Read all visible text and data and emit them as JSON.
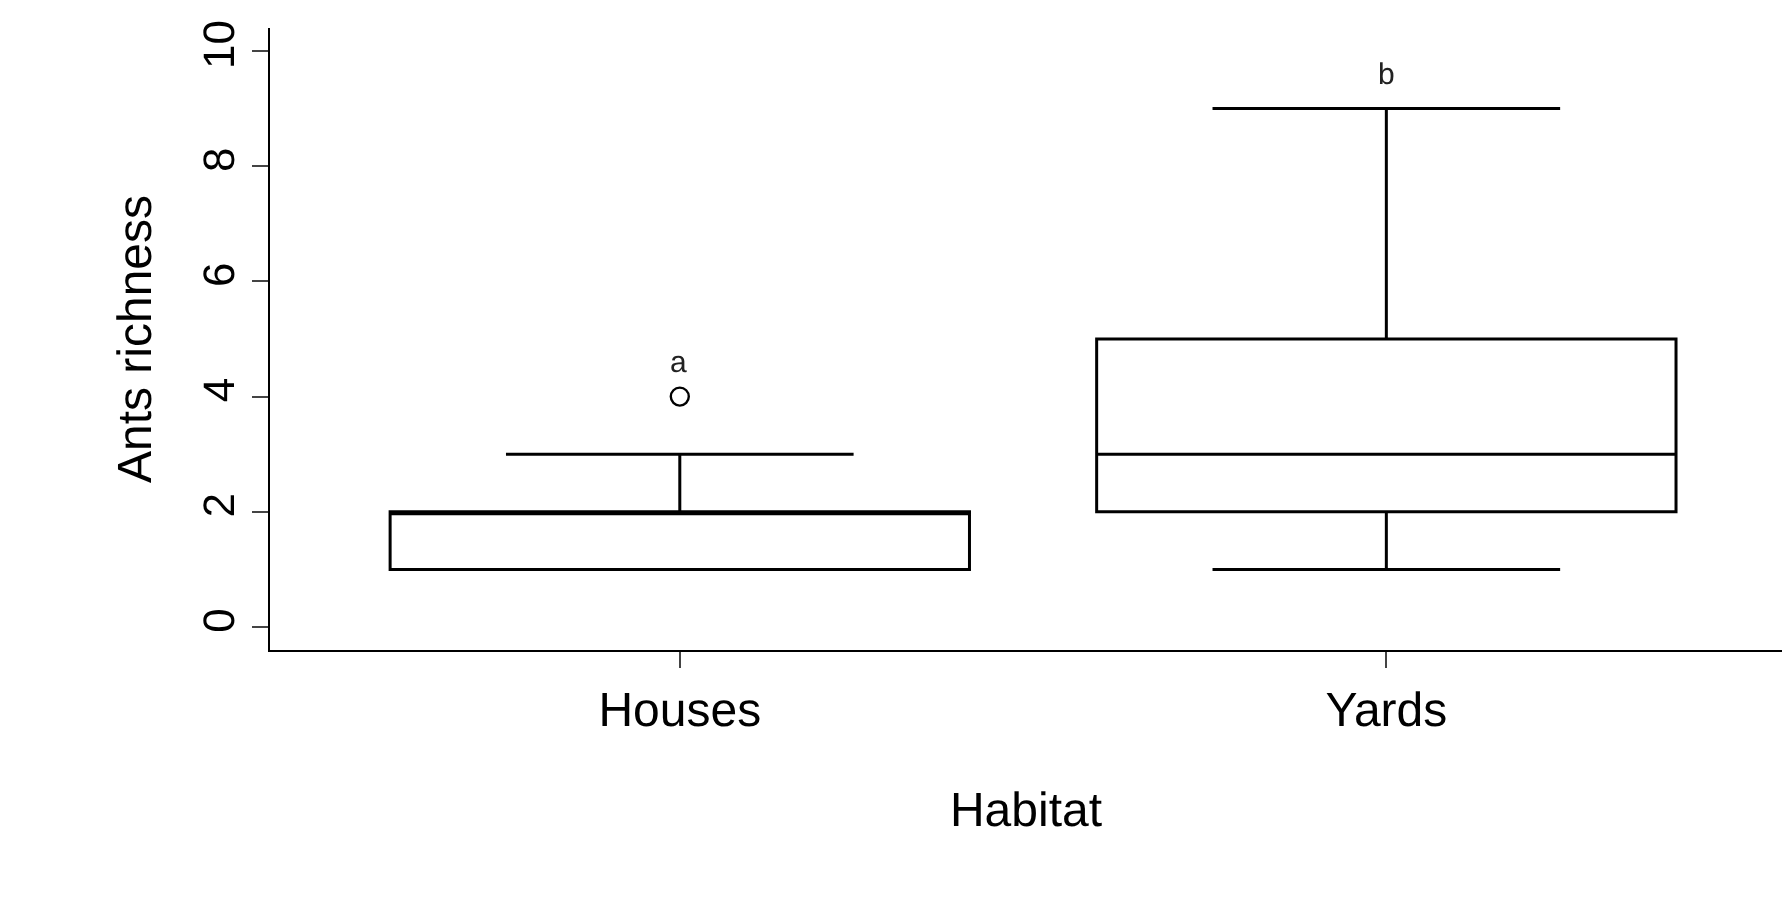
{
  "chart_data": {
    "type": "box",
    "xlabel": "Habitat",
    "ylabel": "Ants richness",
    "categories": [
      "Houses",
      "Yards"
    ],
    "boxes": [
      {
        "low": 1,
        "q1": 1,
        "median": 2,
        "q3": 2,
        "high": 3,
        "outliers": [
          4
        ]
      },
      {
        "low": 1,
        "q1": 2,
        "median": 3,
        "q3": 5,
        "high": 9
      }
    ],
    "color": "#000000",
    "ylim": [
      -0.4,
      10.4
    ],
    "yticks": [
      0,
      2,
      4,
      6,
      8,
      10
    ],
    "annotations": [
      "a",
      "b"
    ],
    "marker": "circle"
  }
}
